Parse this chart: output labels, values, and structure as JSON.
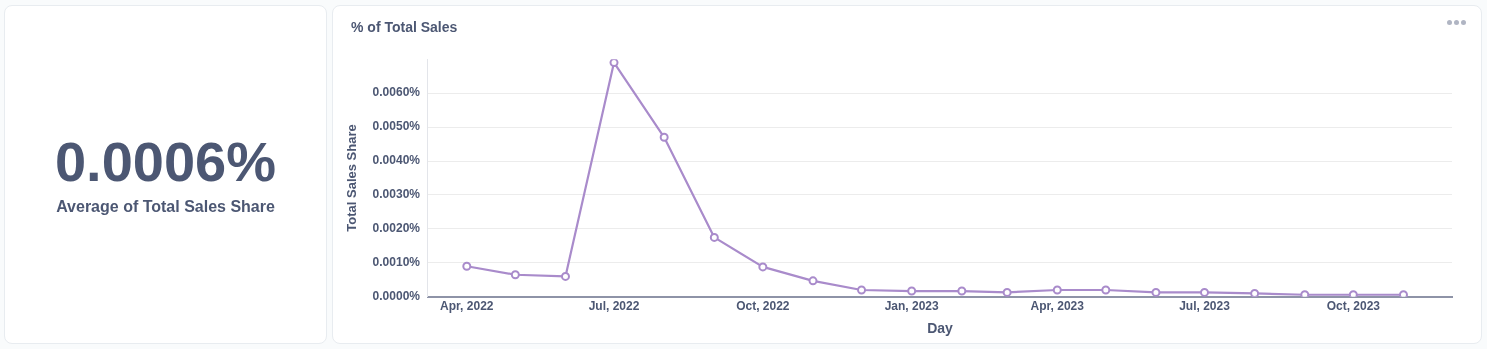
{
  "chart_data": [
    {
      "type": "other",
      "title": "Average of Total Sales Share",
      "annotations": [
        "0.0006%"
      ]
    },
    {
      "type": "line",
      "title": "% of Total Sales",
      "xlabel": "Day",
      "ylabel": "Total Sales Share",
      "x": [
        "2022-04",
        "2022-05",
        "2022-06",
        "2022-07",
        "2022-08",
        "2022-09",
        "2022-10",
        "2022-11",
        "2022-12",
        "2023-01",
        "2023-02",
        "2023-03",
        "2023-04",
        "2023-05",
        "2023-06",
        "2023-07",
        "2023-08",
        "2023-09",
        "2023-10",
        "2023-11"
      ],
      "series": [
        {
          "color": "#a98bcb",
          "values": [
            0.0009,
            0.00065,
            0.0006,
            0.0069,
            0.0047,
            0.00175,
            0.00088,
            0.00047,
            0.0002,
            0.00017,
            0.00017,
            0.00013,
            0.0002,
            0.0002,
            0.00013,
            0.00013,
            0.0001,
            6e-05,
            6e-05,
            6e-05
          ]
        }
      ],
      "xlim": [
        "2022-03-08",
        "2023-12-01"
      ],
      "xticks": [
        {
          "value": "2022-04",
          "label": "Apr, 2022"
        },
        {
          "value": "2022-07",
          "label": "Jul, 2022"
        },
        {
          "value": "2022-10",
          "label": "Oct, 2022"
        },
        {
          "value": "2023-01",
          "label": "Jan, 2023"
        },
        {
          "value": "2023-04",
          "label": "Apr, 2023"
        },
        {
          "value": "2023-07",
          "label": "Jul, 2023"
        },
        {
          "value": "2023-10",
          "label": "Oct, 2023"
        }
      ],
      "ylim": [
        0,
        0.007
      ],
      "yticks": [
        {
          "value": 0,
          "label": "0.0000%"
        },
        {
          "value": 0.001,
          "label": "0.0010%"
        },
        {
          "value": 0.002,
          "label": "0.0020%"
        },
        {
          "value": 0.003,
          "label": "0.0030%"
        },
        {
          "value": 0.004,
          "label": "0.0040%"
        },
        {
          "value": 0.005,
          "label": "0.0050%"
        },
        {
          "value": 0.006,
          "label": "0.0060%"
        }
      ],
      "grid": "y",
      "legend": false,
      "marker": "circle",
      "line_style": "solid"
    }
  ]
}
